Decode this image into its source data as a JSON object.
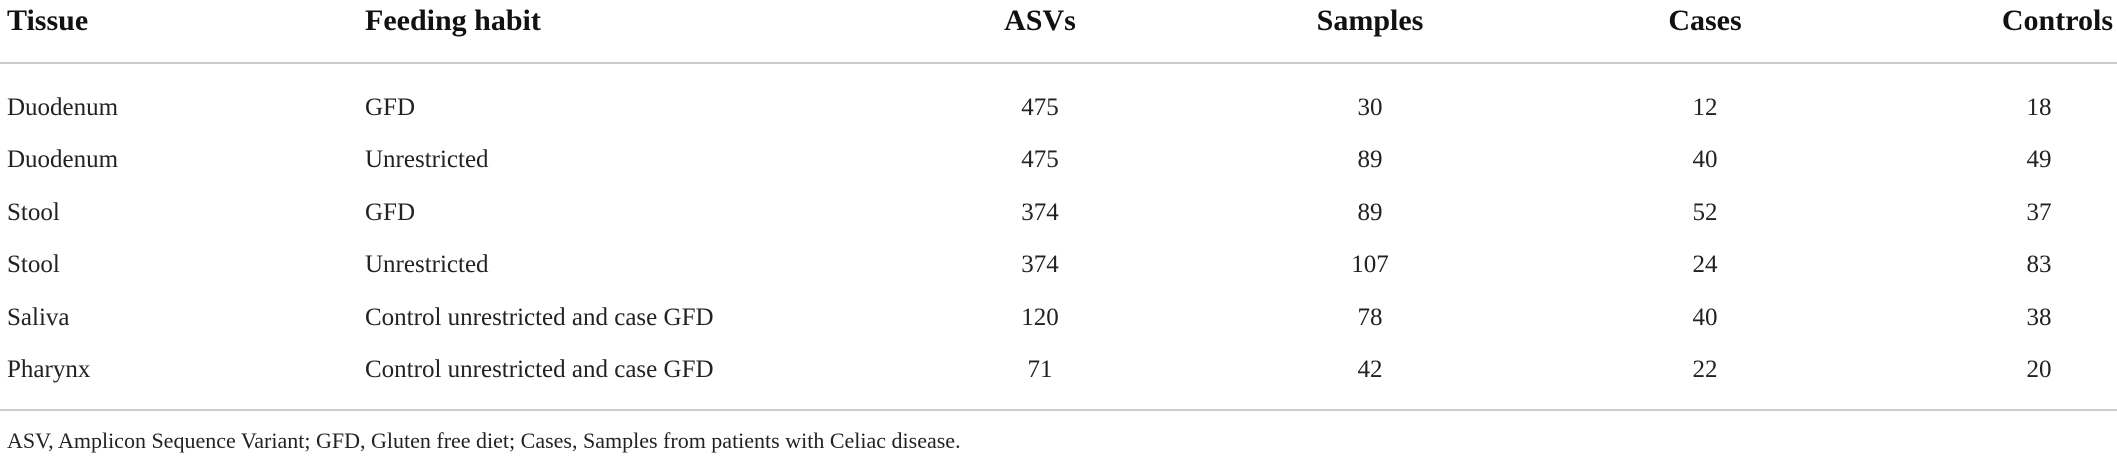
{
  "table": {
    "columns": [
      "Tissue",
      "Feeding habit",
      "ASVs",
      "Samples",
      "Cases",
      "Controls"
    ],
    "rows": [
      [
        "Duodenum",
        "GFD",
        475,
        30,
        12,
        18
      ],
      [
        "Duodenum",
        "Unrestricted",
        475,
        89,
        40,
        49
      ],
      [
        "Stool",
        "GFD",
        374,
        89,
        52,
        37
      ],
      [
        "Stool",
        "Unrestricted",
        374,
        107,
        24,
        83
      ],
      [
        "Saliva",
        "Control unrestricted and case GFD",
        120,
        78,
        40,
        38
      ],
      [
        "Pharynx",
        "Control unrestricted and case GFD",
        71,
        42,
        22,
        20
      ]
    ]
  },
  "footnote": "ASV, Amplicon Sequence Variant; GFD, Gluten free diet; Cases, Samples from patients with Celiac disease."
}
